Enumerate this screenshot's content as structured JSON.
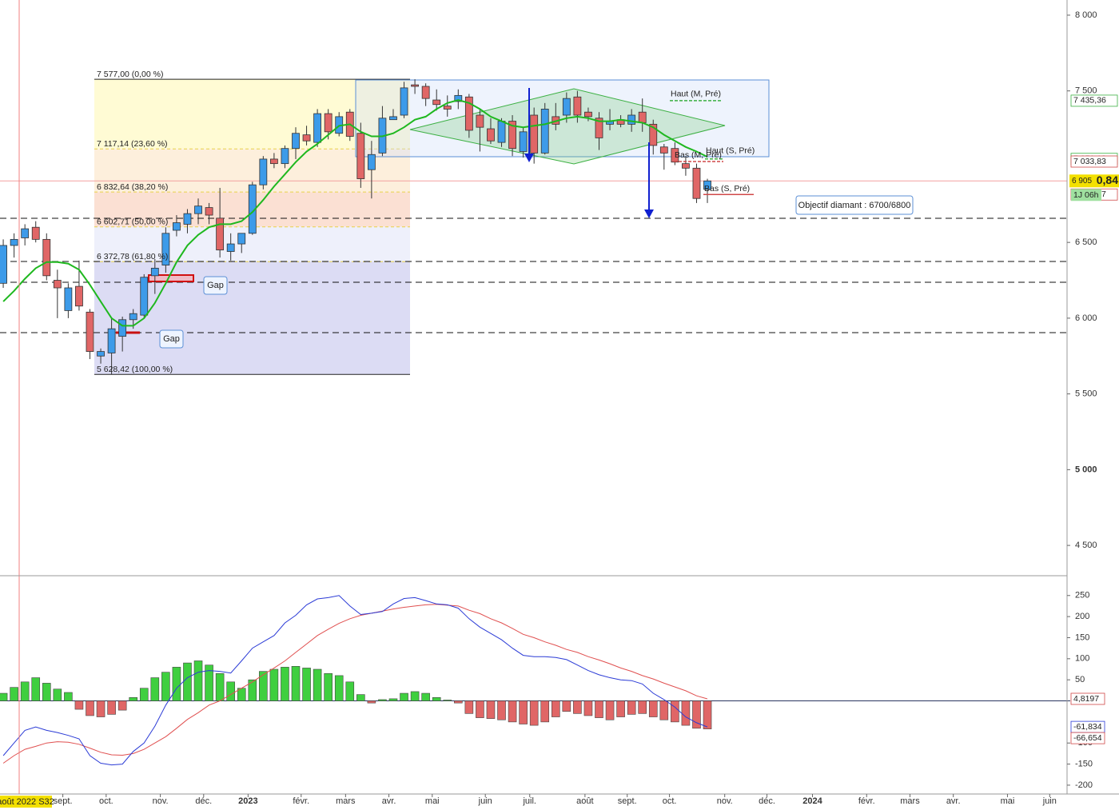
{
  "chart_data": [
    {
      "type": "candlestick",
      "up_color": "#3d9be9",
      "down_color": "#e06666",
      "open": [
        6230,
        6480,
        6530,
        6600,
        6520,
        6250,
        6050,
        6210,
        6040,
        5750,
        5770,
        5880,
        5990,
        6020,
        6280,
        6350,
        6580,
        6620,
        6690,
        6730,
        6660,
        6440,
        6490,
        6560,
        6880,
        7050,
        7020,
        7120,
        7210,
        7160,
        7350,
        7220,
        7360,
        7220,
        6980,
        7090,
        7310,
        7340,
        7540,
        7530,
        7440,
        7400,
        7430,
        7460,
        7340,
        7250,
        7160,
        7300,
        7100,
        7340,
        7090,
        7330,
        7340,
        7460,
        7360,
        7320,
        7280,
        7310,
        7280,
        7360,
        7280,
        7130,
        7120,
        7020,
        6990,
        6850
      ],
      "high": [
        6520,
        6560,
        6620,
        6640,
        6560,
        6320,
        6230,
        6380,
        6060,
        5800,
        6000,
        6010,
        6060,
        6290,
        6390,
        6600,
        6680,
        6720,
        6790,
        6760,
        6860,
        6560,
        6560,
        6900,
        7070,
        7090,
        7140,
        7260,
        7270,
        7380,
        7380,
        7360,
        7380,
        7290,
        7170,
        7400,
        7380,
        7560,
        7577,
        7550,
        7510,
        7470,
        7510,
        7480,
        7380,
        7320,
        7320,
        7340,
        7260,
        7390,
        7420,
        7420,
        7490,
        7500,
        7390,
        7360,
        7380,
        7340,
        7380,
        7450,
        7310,
        7150,
        7160,
        7070,
        7020,
        6920
      ],
      "low": [
        6200,
        6400,
        6480,
        6500,
        6250,
        6000,
        6000,
        6050,
        5730,
        5700,
        5628.42,
        5780,
        5930,
        6000,
        6160,
        6300,
        6540,
        6560,
        6620,
        6620,
        6400,
        6380,
        6430,
        6550,
        6850,
        6990,
        6990,
        7050,
        7140,
        7130,
        7180,
        7200,
        7170,
        6860,
        6790,
        7070,
        7310,
        7320,
        7480,
        7400,
        7370,
        7330,
        7380,
        7190,
        7100,
        7150,
        7130,
        7070,
        7060,
        7020,
        7080,
        7240,
        7290,
        7290,
        7300,
        7110,
        7240,
        7260,
        7230,
        7230,
        7080,
        6980,
        7010,
        6940,
        6760,
        6760
      ],
      "close": [
        6480,
        6520,
        6590,
        6520,
        6280,
        6200,
        6200,
        6080,
        5780,
        5780,
        5930,
        5990,
        6030,
        6270,
        6330,
        6560,
        6630,
        6690,
        6740,
        6680,
        6450,
        6490,
        6560,
        6880,
        7050,
        7020,
        7120,
        7220,
        7170,
        7350,
        7230,
        7330,
        7200,
        6920,
        7080,
        7320,
        7330,
        7520,
        7530,
        7450,
        7410,
        7380,
        7470,
        7240,
        7260,
        7170,
        7300,
        7120,
        7230,
        7090,
        7380,
        7280,
        7450,
        7340,
        7330,
        7190,
        7300,
        7280,
        7340,
        7290,
        7140,
        7090,
        7030,
        6990,
        6790,
        6905.84
      ],
      "ma": {
        "color": "#1fb81f",
        "values": [
          6110,
          6180,
          6260,
          6330,
          6370,
          6370,
          6360,
          6320,
          6220,
          6110,
          6000,
          5950,
          5950,
          6000,
          6100,
          6230,
          6370,
          6480,
          6550,
          6600,
          6620,
          6620,
          6640,
          6700,
          6780,
          6870,
          6950,
          7030,
          7100,
          7150,
          7210,
          7270,
          7280,
          7230,
          7200,
          7200,
          7220,
          7260,
          7310,
          7330,
          7380,
          7420,
          7440,
          7420,
          7380,
          7330,
          7300,
          7270,
          7260,
          7270,
          7280,
          7300,
          7320,
          7330,
          7320,
          7300,
          7300,
          7310,
          7300,
          7290,
          7260,
          7210,
          7170,
          7130,
          7100,
          7065
        ]
      },
      "xlim": [
        -0.3,
        98.2
      ],
      "xticks": [
        {
          "value": 5.5,
          "label": "sept."
        },
        {
          "value": 9.5,
          "label": "oct."
        },
        {
          "value": 14.5,
          "label": "nov."
        },
        {
          "value": 18.5,
          "label": "déc."
        },
        {
          "value": 22.6,
          "label": "2023"
        },
        {
          "value": 27.5,
          "label": "févr."
        },
        {
          "value": 31.6,
          "label": "mars"
        },
        {
          "value": 35.6,
          "label": "avr."
        },
        {
          "value": 39.6,
          "label": "mai"
        },
        {
          "value": 44.5,
          "label": "juin"
        },
        {
          "value": 48.6,
          "label": "juil."
        },
        {
          "value": 53.7,
          "label": "août"
        },
        {
          "value": 57.6,
          "label": "sept."
        },
        {
          "value": 61.5,
          "label": "oct."
        },
        {
          "value": 66.6,
          "label": "nov."
        },
        {
          "value": 70.5,
          "label": "déc."
        },
        {
          "value": 74.7,
          "label": "2024"
        },
        {
          "value": 79.7,
          "label": "févr."
        },
        {
          "value": 83.7,
          "label": "mars"
        },
        {
          "value": 87.7,
          "label": "avr."
        },
        {
          "value": 92.7,
          "label": "mai"
        },
        {
          "value": 96.6,
          "label": "juin"
        }
      ],
      "ylim": [
        4300,
        8100
      ],
      "yticks": [
        {
          "value": 4500,
          "label": "4 500"
        },
        {
          "value": 5000,
          "label": "5 000"
        },
        {
          "value": 5500,
          "label": "5 500"
        },
        {
          "value": 6000,
          "label": "6 000"
        },
        {
          "value": 6500,
          "label": "6 500"
        },
        {
          "value": 7500,
          "label": "7 500"
        },
        {
          "value": 8000,
          "label": "8 000"
        }
      ],
      "fibonacci": [
        {
          "value": 7577,
          "label": "7 577,00 (0,00 %)"
        },
        {
          "value": 7117.14,
          "label": "7 117,14 (23,60 %)"
        },
        {
          "value": 6832.64,
          "label": "6 832,64 (38,20 %)"
        },
        {
          "value": 6602.71,
          "label": "6 602,71 (50,00 %)"
        },
        {
          "value": 6372.78,
          "label": "6 372,78 (61,80 %)"
        },
        {
          "value": 5628.42,
          "label": "5 628,42 (100,00 %)"
        }
      ],
      "pivots": [
        {
          "name": "Haut (M, Pré)",
          "value": 7435.36,
          "label": "7 435,36",
          "color": "#3cb043"
        },
        {
          "name": "Haut (S, Pré)",
          "value": 7051.18,
          "label": "7 051,18",
          "color": "#3cb043"
        },
        {
          "name": "Bas (M, Pré)",
          "value": 7033.83,
          "label": "7 033,83",
          "color": "#d04848"
        },
        {
          "name": "Bas (S, Pré)",
          "value": 6816.17,
          "label": "6 816,17",
          "color": "#d04848"
        }
      ],
      "current_price": {
        "value": 6905.84,
        "label": "6 905",
        "decimals": "0,84"
      },
      "timer": "1J 06h",
      "annotations": {
        "gap_1": "Gap",
        "gap_2": "Gap",
        "objective": "Objectif diamant : 6700/6800"
      }
    },
    {
      "type": "macd",
      "histogram": [
        18,
        32,
        45,
        55,
        42,
        28,
        20,
        -20,
        -35,
        -38,
        -32,
        -22,
        8,
        30,
        55,
        68,
        80,
        90,
        95,
        85,
        65,
        45,
        30,
        50,
        70,
        75,
        80,
        82,
        78,
        75,
        65,
        60,
        45,
        15,
        -5,
        3,
        5,
        18,
        22,
        18,
        8,
        2,
        -5,
        -30,
        -40,
        -42,
        -45,
        -50,
        -55,
        -58,
        -50,
        -38,
        -25,
        -30,
        -35,
        -40,
        -45,
        -38,
        -32,
        -30,
        -38,
        -45,
        -50,
        -58,
        -65,
        -66.654
      ],
      "up_color": "#3fcf3f",
      "down_color": "#e06666",
      "macd": {
        "color": "#2b3bd6",
        "values": [
          -130,
          -100,
          -70,
          -62,
          -70,
          -75,
          -82,
          -90,
          -130,
          -148,
          -152,
          -150,
          -120,
          -100,
          -60,
          -10,
          30,
          55,
          68,
          72,
          70,
          66,
          95,
          125,
          140,
          155,
          185,
          203,
          228,
          242,
          245,
          250,
          225,
          205,
          208,
          212,
          230,
          243,
          245,
          238,
          230,
          228,
          220,
          195,
          175,
          160,
          145,
          125,
          108,
          105,
          105,
          103,
          98,
          85,
          72,
          62,
          55,
          50,
          48,
          40,
          18,
          3,
          -15,
          -38,
          -52,
          -61.834
        ]
      },
      "signal": {
        "color": "#e05050",
        "values": [
          -148,
          -130,
          -115,
          -108,
          -100,
          -97,
          -98,
          -103,
          -112,
          -122,
          -128,
          -129,
          -125,
          -115,
          -100,
          -85,
          -65,
          -44,
          -28,
          -10,
          0,
          15,
          30,
          45,
          62,
          78,
          95,
          115,
          135,
          155,
          170,
          184,
          195,
          203,
          208,
          213,
          218,
          222,
          225,
          228,
          229,
          227,
          225,
          215,
          207,
          195,
          185,
          172,
          158,
          150,
          140,
          132,
          122,
          115,
          105,
          97,
          88,
          78,
          70,
          60,
          52,
          42,
          33,
          24,
          12,
          4.8197
        ]
      },
      "ylim": [
        -221,
        297
      ],
      "yticks": [
        250,
        200,
        150,
        100,
        50,
        -100,
        -150,
        -200
      ],
      "last_labels": [
        {
          "value": 4.8197,
          "label": "4,8197",
          "color": "#d04848"
        },
        {
          "value": -61.834,
          "label": "-61,834",
          "color": "#2b3bd6"
        },
        {
          "value": -66.654,
          "label": "-66,654",
          "color": "#d04848"
        }
      ]
    }
  ],
  "period_label": "août 2022 S32"
}
